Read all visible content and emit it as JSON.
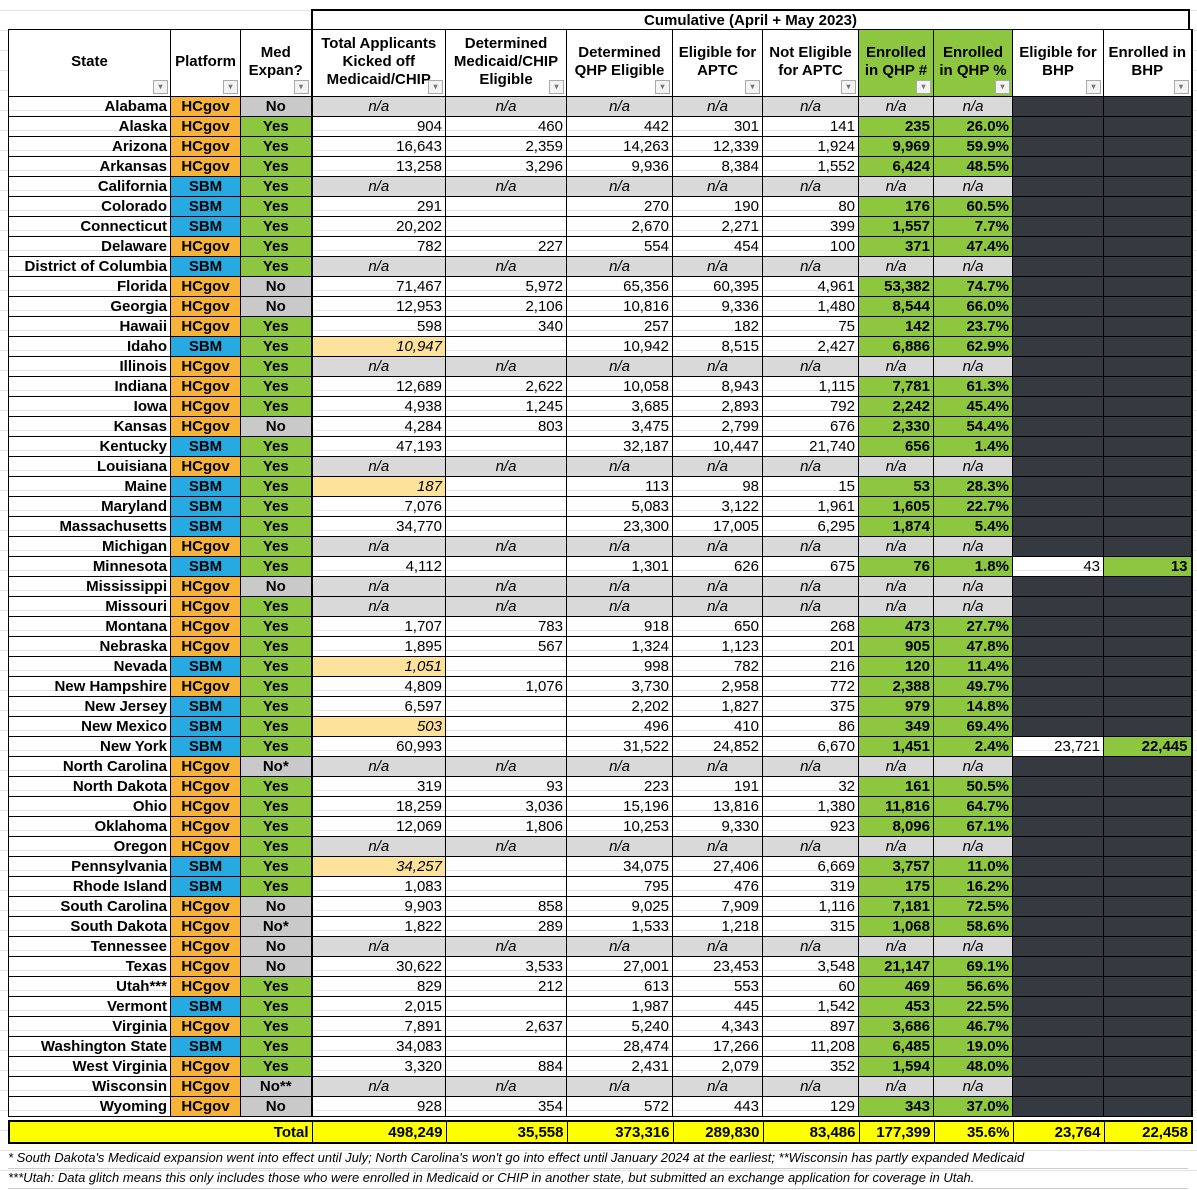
{
  "header": {
    "group_title": "Cumulative (April + May 2023)",
    "columns": [
      "State",
      "Platform",
      "Med Expan?",
      "Total Applicants Kicked off Medicaid/CHIP",
      "Determined Medicaid/CHIP Eligible",
      "Determined QHP Eligible",
      "Eligible for APTC",
      "Not Eligible for APTC",
      "Enrolled in QHP #",
      "Enrolled in QHP %",
      "Eligible for BHP",
      "Enrolled in BHP"
    ]
  },
  "colors": {
    "HCgov": "#f7b338",
    "SBM": "#27aae1",
    "yes": "#8dc63f",
    "no": "#c9c9c9",
    "na": "#d9d9d9",
    "estimate": "#fde29b",
    "bhp_empty": "#343a40",
    "total": "#ffff00"
  },
  "rows": [
    {
      "c": [
        "Alabama",
        "HCgov",
        "No",
        "n/a",
        "n/a",
        "n/a",
        "n/a",
        "n/a",
        "n/a",
        "n/a",
        "",
        ""
      ]
    },
    {
      "c": [
        "Alaska",
        "HCgov",
        "Yes",
        "904",
        "460",
        "442",
        "301",
        "141",
        "235",
        "26.0%",
        "",
        ""
      ]
    },
    {
      "c": [
        "Arizona",
        "HCgov",
        "Yes",
        "16,643",
        "2,359",
        "14,263",
        "12,339",
        "1,924",
        "9,969",
        "59.9%",
        "",
        ""
      ]
    },
    {
      "c": [
        "Arkansas",
        "HCgov",
        "Yes",
        "13,258",
        "3,296",
        "9,936",
        "8,384",
        "1,552",
        "6,424",
        "48.5%",
        "",
        ""
      ]
    },
    {
      "c": [
        "California",
        "SBM",
        "Yes",
        "n/a",
        "n/a",
        "n/a",
        "n/a",
        "n/a",
        "n/a",
        "n/a",
        "",
        ""
      ]
    },
    {
      "c": [
        "Colorado",
        "SBM",
        "Yes",
        "291",
        "",
        "270",
        "190",
        "80",
        "176",
        "60.5%",
        "",
        ""
      ]
    },
    {
      "c": [
        "Connecticut",
        "SBM",
        "Yes",
        "20,202",
        "",
        "2,670",
        "2,271",
        "399",
        "1,557",
        "7.7%",
        "",
        ""
      ]
    },
    {
      "c": [
        "Delaware",
        "HCgov",
        "Yes",
        "782",
        "227",
        "554",
        "454",
        "100",
        "371",
        "47.4%",
        "",
        ""
      ]
    },
    {
      "c": [
        "District of Columbia",
        "SBM",
        "Yes",
        "n/a",
        "n/a",
        "n/a",
        "n/a",
        "n/a",
        "n/a",
        "n/a",
        "",
        ""
      ]
    },
    {
      "c": [
        "Florida",
        "HCgov",
        "No",
        "71,467",
        "5,972",
        "65,356",
        "60,395",
        "4,961",
        "53,382",
        "74.7%",
        "",
        ""
      ]
    },
    {
      "c": [
        "Georgia",
        "HCgov",
        "No",
        "12,953",
        "2,106",
        "10,816",
        "9,336",
        "1,480",
        "8,544",
        "66.0%",
        "",
        ""
      ]
    },
    {
      "c": [
        "Hawaii",
        "HCgov",
        "Yes",
        "598",
        "340",
        "257",
        "182",
        "75",
        "142",
        "23.7%",
        "",
        ""
      ]
    },
    {
      "c": [
        "Idaho",
        "SBM",
        "Yes",
        "10,947",
        "",
        "10,942",
        "8,515",
        "2,427",
        "6,886",
        "62.9%",
        "",
        ""
      ],
      "est": true
    },
    {
      "c": [
        "Illinois",
        "HCgov",
        "Yes",
        "n/a",
        "n/a",
        "n/a",
        "n/a",
        "n/a",
        "n/a",
        "n/a",
        "",
        ""
      ]
    },
    {
      "c": [
        "Indiana",
        "HCgov",
        "Yes",
        "12,689",
        "2,622",
        "10,058",
        "8,943",
        "1,115",
        "7,781",
        "61.3%",
        "",
        ""
      ]
    },
    {
      "c": [
        "Iowa",
        "HCgov",
        "Yes",
        "4,938",
        "1,245",
        "3,685",
        "2,893",
        "792",
        "2,242",
        "45.4%",
        "",
        ""
      ]
    },
    {
      "c": [
        "Kansas",
        "HCgov",
        "No",
        "4,284",
        "803",
        "3,475",
        "2,799",
        "676",
        "2,330",
        "54.4%",
        "",
        ""
      ]
    },
    {
      "c": [
        "Kentucky",
        "SBM",
        "Yes",
        "47,193",
        "",
        "32,187",
        "10,447",
        "21,740",
        "656",
        "1.4%",
        "",
        ""
      ]
    },
    {
      "c": [
        "Louisiana",
        "HCgov",
        "Yes",
        "n/a",
        "n/a",
        "n/a",
        "n/a",
        "n/a",
        "n/a",
        "n/a",
        "",
        ""
      ]
    },
    {
      "c": [
        "Maine",
        "SBM",
        "Yes",
        "187",
        "",
        "113",
        "98",
        "15",
        "53",
        "28.3%",
        "",
        ""
      ],
      "est": true
    },
    {
      "c": [
        "Maryland",
        "SBM",
        "Yes",
        "7,076",
        "",
        "5,083",
        "3,122",
        "1,961",
        "1,605",
        "22.7%",
        "",
        ""
      ]
    },
    {
      "c": [
        "Massachusetts",
        "SBM",
        "Yes",
        "34,770",
        "",
        "23,300",
        "17,005",
        "6,295",
        "1,874",
        "5.4%",
        "",
        ""
      ]
    },
    {
      "c": [
        "Michigan",
        "HCgov",
        "Yes",
        "n/a",
        "n/a",
        "n/a",
        "n/a",
        "n/a",
        "n/a",
        "n/a",
        "",
        ""
      ]
    },
    {
      "c": [
        "Minnesota",
        "SBM",
        "Yes",
        "4,112",
        "",
        "1,301",
        "626",
        "675",
        "76",
        "1.8%",
        "43",
        "13"
      ]
    },
    {
      "c": [
        "Mississippi",
        "HCgov",
        "No",
        "n/a",
        "n/a",
        "n/a",
        "n/a",
        "n/a",
        "n/a",
        "n/a",
        "",
        ""
      ]
    },
    {
      "c": [
        "Missouri",
        "HCgov",
        "Yes",
        "n/a",
        "n/a",
        "n/a",
        "n/a",
        "n/a",
        "n/a",
        "n/a",
        "",
        ""
      ]
    },
    {
      "c": [
        "Montana",
        "HCgov",
        "Yes",
        "1,707",
        "783",
        "918",
        "650",
        "268",
        "473",
        "27.7%",
        "",
        ""
      ]
    },
    {
      "c": [
        "Nebraska",
        "HCgov",
        "Yes",
        "1,895",
        "567",
        "1,324",
        "1,123",
        "201",
        "905",
        "47.8%",
        "",
        ""
      ]
    },
    {
      "c": [
        "Nevada",
        "SBM",
        "Yes",
        "1,051",
        "",
        "998",
        "782",
        "216",
        "120",
        "11.4%",
        "",
        ""
      ],
      "est": true
    },
    {
      "c": [
        "New Hampshire",
        "HCgov",
        "Yes",
        "4,809",
        "1,076",
        "3,730",
        "2,958",
        "772",
        "2,388",
        "49.7%",
        "",
        ""
      ]
    },
    {
      "c": [
        "New Jersey",
        "SBM",
        "Yes",
        "6,597",
        "",
        "2,202",
        "1,827",
        "375",
        "979",
        "14.8%",
        "",
        ""
      ]
    },
    {
      "c": [
        "New Mexico",
        "SBM",
        "Yes",
        "503",
        "",
        "496",
        "410",
        "86",
        "349",
        "69.4%",
        "",
        ""
      ],
      "est": true
    },
    {
      "c": [
        "New York",
        "SBM",
        "Yes",
        "60,993",
        "",
        "31,522",
        "24,852",
        "6,670",
        "1,451",
        "2.4%",
        "23,721",
        "22,445"
      ]
    },
    {
      "c": [
        "North Carolina",
        "HCgov",
        "No*",
        "n/a",
        "n/a",
        "n/a",
        "n/a",
        "n/a",
        "n/a",
        "n/a",
        "",
        ""
      ]
    },
    {
      "c": [
        "North Dakota",
        "HCgov",
        "Yes",
        "319",
        "93",
        "223",
        "191",
        "32",
        "161",
        "50.5%",
        "",
        ""
      ]
    },
    {
      "c": [
        "Ohio",
        "HCgov",
        "Yes",
        "18,259",
        "3,036",
        "15,196",
        "13,816",
        "1,380",
        "11,816",
        "64.7%",
        "",
        ""
      ]
    },
    {
      "c": [
        "Oklahoma",
        "HCgov",
        "Yes",
        "12,069",
        "1,806",
        "10,253",
        "9,330",
        "923",
        "8,096",
        "67.1%",
        "",
        ""
      ]
    },
    {
      "c": [
        "Oregon",
        "HCgov",
        "Yes",
        "n/a",
        "n/a",
        "n/a",
        "n/a",
        "n/a",
        "n/a",
        "n/a",
        "",
        ""
      ]
    },
    {
      "c": [
        "Pennsylvania",
        "SBM",
        "Yes",
        "34,257",
        "",
        "34,075",
        "27,406",
        "6,669",
        "3,757",
        "11.0%",
        "",
        ""
      ],
      "est": true
    },
    {
      "c": [
        "Rhode Island",
        "SBM",
        "Yes",
        "1,083",
        "",
        "795",
        "476",
        "319",
        "175",
        "16.2%",
        "",
        ""
      ]
    },
    {
      "c": [
        "South Carolina",
        "HCgov",
        "No",
        "9,903",
        "858",
        "9,025",
        "7,909",
        "1,116",
        "7,181",
        "72.5%",
        "",
        ""
      ]
    },
    {
      "c": [
        "South Dakota",
        "HCgov",
        "No*",
        "1,822",
        "289",
        "1,533",
        "1,218",
        "315",
        "1,068",
        "58.6%",
        "",
        ""
      ]
    },
    {
      "c": [
        "Tennessee",
        "HCgov",
        "No",
        "n/a",
        "n/a",
        "n/a",
        "n/a",
        "n/a",
        "n/a",
        "n/a",
        "",
        ""
      ]
    },
    {
      "c": [
        "Texas",
        "HCgov",
        "No",
        "30,622",
        "3,533",
        "27,001",
        "23,453",
        "3,548",
        "21,147",
        "69.1%",
        "",
        ""
      ]
    },
    {
      "c": [
        "Utah***",
        "HCgov",
        "Yes",
        "829",
        "212",
        "613",
        "553",
        "60",
        "469",
        "56.6%",
        "",
        ""
      ]
    },
    {
      "c": [
        "Vermont",
        "SBM",
        "Yes",
        "2,015",
        "",
        "1,987",
        "445",
        "1,542",
        "453",
        "22.5%",
        "",
        ""
      ]
    },
    {
      "c": [
        "Virginia",
        "HCgov",
        "Yes",
        "7,891",
        "2,637",
        "5,240",
        "4,343",
        "897",
        "3,686",
        "46.7%",
        "",
        ""
      ]
    },
    {
      "c": [
        "Washington State",
        "SBM",
        "Yes",
        "34,083",
        "",
        "28,474",
        "17,266",
        "11,208",
        "6,485",
        "19.0%",
        "",
        ""
      ]
    },
    {
      "c": [
        "West Virginia",
        "HCgov",
        "Yes",
        "3,320",
        "884",
        "2,431",
        "2,079",
        "352",
        "1,594",
        "48.0%",
        "",
        ""
      ]
    },
    {
      "c": [
        "Wisconsin",
        "HCgov",
        "No**",
        "n/a",
        "n/a",
        "n/a",
        "n/a",
        "n/a",
        "n/a",
        "n/a",
        "",
        ""
      ]
    },
    {
      "c": [
        "Wyoming",
        "HCgov",
        "No",
        "928",
        "354",
        "572",
        "443",
        "129",
        "343",
        "37.0%",
        "",
        ""
      ]
    }
  ],
  "total": {
    "label": "Total",
    "values": [
      "498,249",
      "35,558",
      "373,316",
      "289,830",
      "83,486",
      "177,399",
      "35.6%",
      "23,764",
      "22,458"
    ]
  },
  "footnotes": [
    "* South Dakota's Medicaid expansion went into effect until July; North Carolina's won't go into effect until January 2024 at the earliest; **Wisconsin has partly expanded Medicaid",
    "***Utah: Data glitch means this only includes those who were enrolled in Medicaid or CHIP in another state, but submitted an exchange application for coverage in Utah."
  ]
}
